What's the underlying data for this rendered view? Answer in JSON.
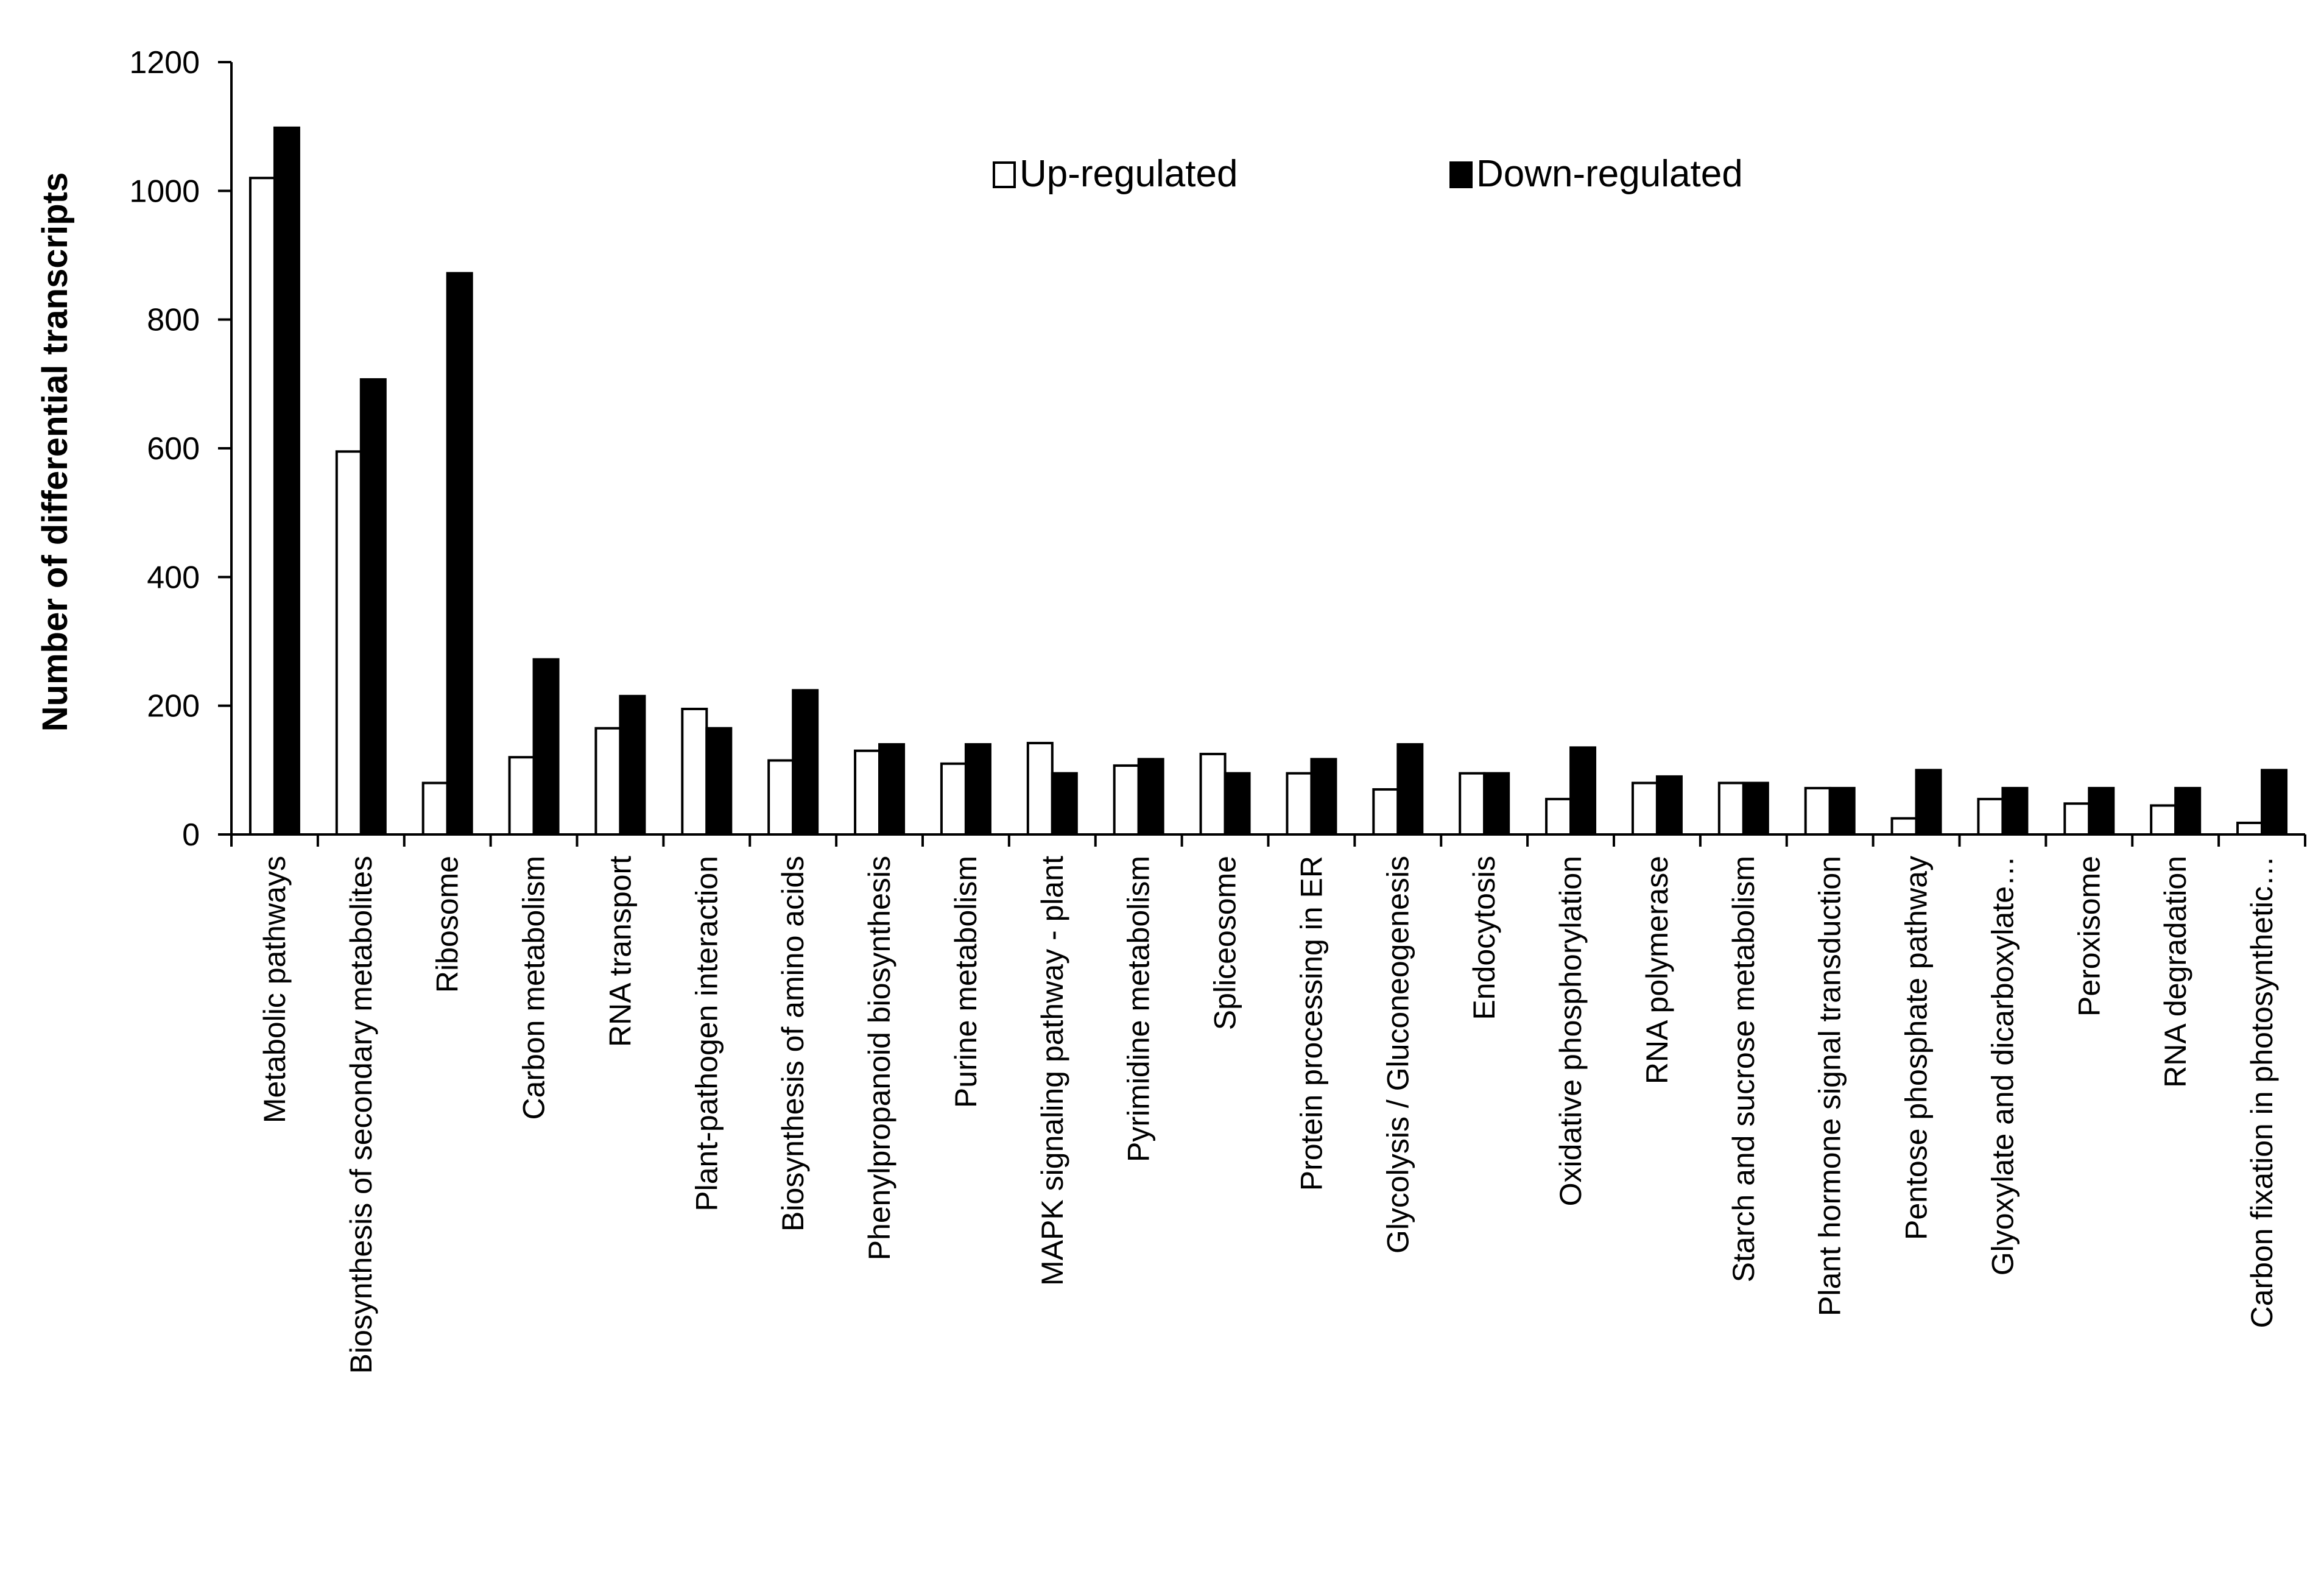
{
  "chart_data": {
    "type": "bar",
    "title": "",
    "xlabel": "",
    "ylabel": "Number of differential transcripts",
    "ylim": [
      0,
      1200
    ],
    "yticks": [
      "0",
      "200",
      "400",
      "600",
      "800",
      "1000",
      "1200"
    ],
    "grid": false,
    "legend_position": "top-center",
    "categories": [
      "Metabolic pathways",
      "Biosynthesis of secondary metabolites",
      "Ribosome",
      "Carbon metabolism",
      "RNA transport",
      "Plant-pathogen interaction",
      "Biosynthesis of amino acids",
      "Phenylpropanoid biosynthesis",
      "Purine metabolism",
      "MAPK signaling pathway - plant",
      "Pyrimidine metabolism",
      "Spliceosome",
      "Protein processing in ER",
      "Glycolysis / Gluconeogenesis",
      "Endocytosis",
      "Oxidative phosphorylation",
      "RNA polymerase",
      "Starch and sucrose metabolism",
      "Plant hormone signal transduction",
      "Pentose phosphate pathway",
      "Glyoxylate and dicarboxylate…",
      "Peroxisome",
      "RNA degradation",
      "Carbon fixation in photosynthetic…"
    ],
    "series": [
      {
        "name": "Up-regulated",
        "color": "#ffffff",
        "values": [
          1020,
          595,
          80,
          120,
          165,
          195,
          115,
          130,
          110,
          142,
          107,
          125,
          95,
          70,
          95,
          55,
          80,
          80,
          72,
          25,
          55,
          48,
          45,
          18
        ]
      },
      {
        "name": "Down-regulated",
        "color": "#000000",
        "values": [
          1098,
          707,
          872,
          272,
          215,
          165,
          224,
          140,
          140,
          95,
          117,
          95,
          117,
          140,
          95,
          135,
          90,
          80,
          72,
          100,
          72,
          72,
          72,
          100
        ]
      }
    ]
  }
}
